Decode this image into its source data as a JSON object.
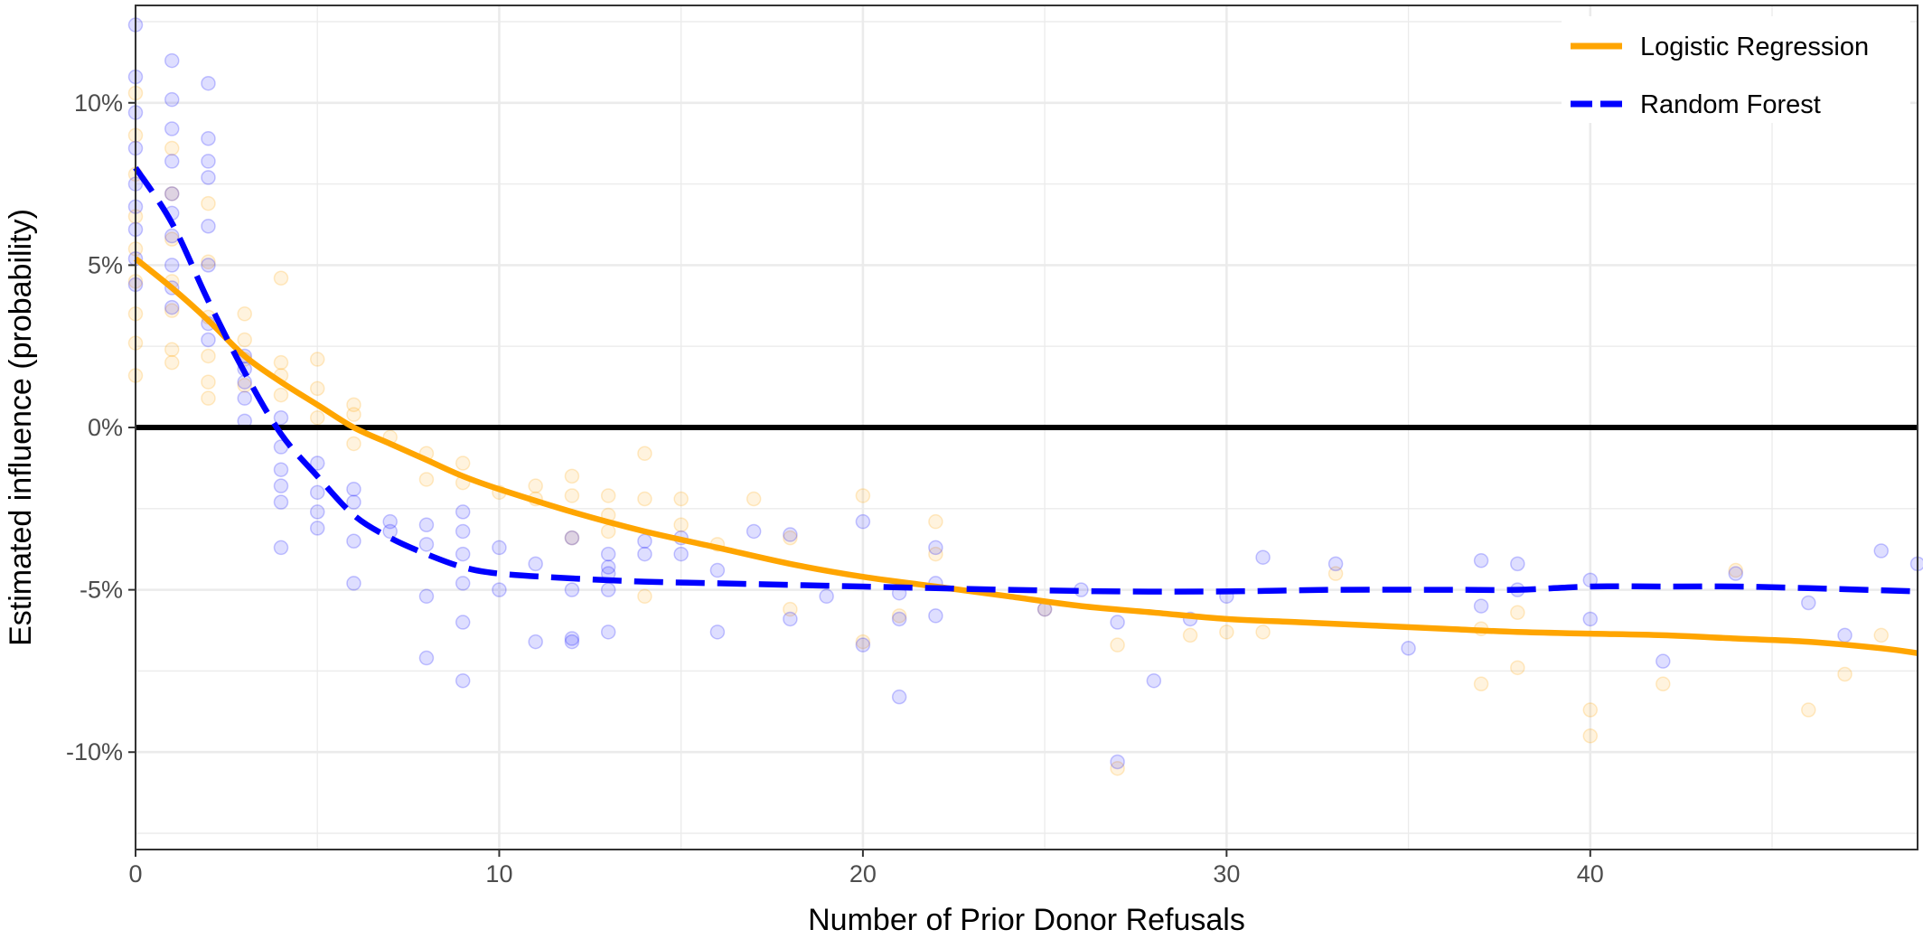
{
  "chart_data": {
    "type": "scatter",
    "title": "",
    "xlabel": "Number of Prior Donor Refusals",
    "ylabel": "Estimated influence (probability)",
    "xlim": [
      0,
      49
    ],
    "ylim": [
      -13,
      13
    ],
    "x_ticks": [
      0,
      10,
      20,
      30,
      40
    ],
    "x_tick_labels": [
      "0",
      "10",
      "20",
      "30",
      "40"
    ],
    "y_ticks": [
      10,
      5,
      0,
      -5,
      -10
    ],
    "y_tick_labels": [
      "10%",
      "5%",
      "0%",
      "-5%",
      "-10%"
    ],
    "grid": true,
    "reference_line_y": 0,
    "legend_position": "top-right",
    "colors": {
      "logistic": "#FFA500",
      "forest": "#0000FF",
      "grid": "#ebebeb",
      "reference": "#000000",
      "border": "#333333"
    },
    "series": [
      {
        "name": "Logistic Regression",
        "style": "solid",
        "color": "#FFA500",
        "line": [
          [
            0,
            5.2
          ],
          [
            1,
            4.3
          ],
          [
            2,
            3.3
          ],
          [
            3,
            2.2
          ],
          [
            4,
            1.4
          ],
          [
            5,
            0.7
          ],
          [
            6,
            0.0
          ],
          [
            7,
            -0.5
          ],
          [
            8,
            -1.0
          ],
          [
            9,
            -1.5
          ],
          [
            10,
            -1.9
          ],
          [
            12,
            -2.6
          ],
          [
            14,
            -3.2
          ],
          [
            16,
            -3.7
          ],
          [
            18,
            -4.2
          ],
          [
            20,
            -4.6
          ],
          [
            22,
            -4.9
          ],
          [
            24,
            -5.2
          ],
          [
            26,
            -5.5
          ],
          [
            28,
            -5.7
          ],
          [
            30,
            -5.9
          ],
          [
            32,
            -6.0
          ],
          [
            34,
            -6.1
          ],
          [
            36,
            -6.2
          ],
          [
            38,
            -6.3
          ],
          [
            40,
            -6.35
          ],
          [
            42,
            -6.4
          ],
          [
            44,
            -6.5
          ],
          [
            46,
            -6.6
          ],
          [
            48,
            -6.8
          ],
          [
            49,
            -6.95
          ]
        ],
        "points": [
          [
            0,
            10.3
          ],
          [
            0,
            9.0
          ],
          [
            0,
            7.8
          ],
          [
            0,
            6.5
          ],
          [
            0,
            5.5
          ],
          [
            0,
            4.5
          ],
          [
            0,
            3.5
          ],
          [
            0,
            2.6
          ],
          [
            0,
            1.6
          ],
          [
            1,
            8.6
          ],
          [
            1,
            7.2
          ],
          [
            1,
            5.8
          ],
          [
            1,
            4.5
          ],
          [
            1,
            3.6
          ],
          [
            1,
            2.4
          ],
          [
            1,
            2.0
          ],
          [
            2,
            6.9
          ],
          [
            2,
            5.1
          ],
          [
            2,
            3.4
          ],
          [
            2,
            2.2
          ],
          [
            2,
            1.4
          ],
          [
            2,
            0.9
          ],
          [
            3,
            3.5
          ],
          [
            3,
            2.7
          ],
          [
            3,
            2.1
          ],
          [
            3,
            1.3
          ],
          [
            4,
            4.6
          ],
          [
            4,
            2.0
          ],
          [
            4,
            1.6
          ],
          [
            4,
            1.0
          ],
          [
            5,
            2.1
          ],
          [
            5,
            1.2
          ],
          [
            5,
            0.3
          ],
          [
            6,
            0.7
          ],
          [
            6,
            0.4
          ],
          [
            6,
            -0.5
          ],
          [
            7,
            -0.3
          ],
          [
            8,
            -0.8
          ],
          [
            8,
            -1.6
          ],
          [
            9,
            -1.1
          ],
          [
            9,
            -1.7
          ],
          [
            10,
            -2.0
          ],
          [
            11,
            -1.8
          ],
          [
            11,
            -2.2
          ],
          [
            12,
            -1.5
          ],
          [
            12,
            -2.1
          ],
          [
            12,
            -3.4
          ],
          [
            13,
            -2.1
          ],
          [
            13,
            -2.7
          ],
          [
            13,
            -3.2
          ],
          [
            14,
            -0.8
          ],
          [
            14,
            -2.2
          ],
          [
            14,
            -5.2
          ],
          [
            15,
            -2.2
          ],
          [
            15,
            -3.0
          ],
          [
            16,
            -3.6
          ],
          [
            17,
            -2.2
          ],
          [
            18,
            -3.4
          ],
          [
            18,
            -5.6
          ],
          [
            20,
            -2.1
          ],
          [
            20,
            -6.6
          ],
          [
            21,
            -5.8
          ],
          [
            22,
            -2.9
          ],
          [
            22,
            -3.9
          ],
          [
            25,
            -5.6
          ],
          [
            27,
            -6.7
          ],
          [
            27,
            -10.5
          ],
          [
            29,
            -6.4
          ],
          [
            30,
            -6.3
          ],
          [
            31,
            -6.3
          ],
          [
            33,
            -4.5
          ],
          [
            37,
            -6.2
          ],
          [
            37,
            -7.9
          ],
          [
            38,
            -5.7
          ],
          [
            38,
            -7.4
          ],
          [
            40,
            -8.7
          ],
          [
            40,
            -9.5
          ],
          [
            42,
            -7.9
          ],
          [
            44,
            -4.4
          ],
          [
            46,
            -8.7
          ],
          [
            47,
            -7.6
          ],
          [
            48,
            -6.4
          ]
        ]
      },
      {
        "name": "Random Forest",
        "style": "dashed",
        "color": "#0000FF",
        "line": [
          [
            0,
            8.0
          ],
          [
            1,
            6.3
          ],
          [
            2,
            3.9
          ],
          [
            3,
            1.7
          ],
          [
            4,
            -0.2
          ],
          [
            5,
            -1.5
          ],
          [
            6,
            -2.7
          ],
          [
            7,
            -3.4
          ],
          [
            8,
            -3.9
          ],
          [
            9,
            -4.3
          ],
          [
            10,
            -4.5
          ],
          [
            12,
            -4.65
          ],
          [
            14,
            -4.75
          ],
          [
            16,
            -4.8
          ],
          [
            18,
            -4.85
          ],
          [
            20,
            -4.9
          ],
          [
            22,
            -4.95
          ],
          [
            24,
            -5.0
          ],
          [
            27,
            -5.05
          ],
          [
            30,
            -5.05
          ],
          [
            33,
            -5.0
          ],
          [
            36,
            -5.0
          ],
          [
            38,
            -5.0
          ],
          [
            40,
            -4.9
          ],
          [
            42,
            -4.9
          ],
          [
            44,
            -4.9
          ],
          [
            46,
            -4.95
          ],
          [
            49,
            -5.05
          ]
        ],
        "points": [
          [
            0,
            12.4
          ],
          [
            0,
            10.8
          ],
          [
            0,
            9.7
          ],
          [
            0,
            8.6
          ],
          [
            0,
            7.5
          ],
          [
            0,
            6.8
          ],
          [
            0,
            6.1
          ],
          [
            0,
            5.2
          ],
          [
            0,
            4.4
          ],
          [
            1,
            11.3
          ],
          [
            1,
            10.1
          ],
          [
            1,
            9.2
          ],
          [
            1,
            8.2
          ],
          [
            1,
            7.2
          ],
          [
            1,
            6.6
          ],
          [
            1,
            5.9
          ],
          [
            1,
            5.0
          ],
          [
            1,
            4.3
          ],
          [
            1,
            3.7
          ],
          [
            2,
            10.6
          ],
          [
            2,
            8.9
          ],
          [
            2,
            8.2
          ],
          [
            2,
            7.7
          ],
          [
            2,
            6.2
          ],
          [
            2,
            5.0
          ],
          [
            2,
            3.2
          ],
          [
            2,
            2.7
          ],
          [
            3,
            2.2
          ],
          [
            3,
            1.8
          ],
          [
            3,
            1.4
          ],
          [
            3,
            0.9
          ],
          [
            3,
            0.2
          ],
          [
            4,
            0.3
          ],
          [
            4,
            -0.6
          ],
          [
            4,
            -1.3
          ],
          [
            4,
            -1.8
          ],
          [
            4,
            -2.3
          ],
          [
            4,
            -3.7
          ],
          [
            5,
            -1.1
          ],
          [
            5,
            -2.0
          ],
          [
            5,
            -2.6
          ],
          [
            5,
            -3.1
          ],
          [
            6,
            -1.9
          ],
          [
            6,
            -2.3
          ],
          [
            6,
            -3.5
          ],
          [
            6,
            -4.8
          ],
          [
            7,
            -3.2
          ],
          [
            7,
            -2.9
          ],
          [
            8,
            -3.0
          ],
          [
            8,
            -3.6
          ],
          [
            8,
            -5.2
          ],
          [
            8,
            -7.1
          ],
          [
            9,
            -2.6
          ],
          [
            9,
            -3.2
          ],
          [
            9,
            -3.9
          ],
          [
            9,
            -4.8
          ],
          [
            9,
            -6.0
          ],
          [
            9,
            -7.8
          ],
          [
            10,
            -3.7
          ],
          [
            10,
            -5.0
          ],
          [
            11,
            -4.2
          ],
          [
            11,
            -6.6
          ],
          [
            12,
            -3.4
          ],
          [
            12,
            -5.0
          ],
          [
            12,
            -6.5
          ],
          [
            12,
            -6.6
          ],
          [
            13,
            -3.9
          ],
          [
            13,
            -4.3
          ],
          [
            13,
            -4.5
          ],
          [
            13,
            -5.0
          ],
          [
            13,
            -6.3
          ],
          [
            14,
            -3.5
          ],
          [
            14,
            -3.9
          ],
          [
            15,
            -3.4
          ],
          [
            15,
            -3.9
          ],
          [
            16,
            -4.4
          ],
          [
            16,
            -6.3
          ],
          [
            17,
            -3.2
          ],
          [
            18,
            -3.3
          ],
          [
            18,
            -5.9
          ],
          [
            19,
            -5.2
          ],
          [
            20,
            -2.9
          ],
          [
            20,
            -6.7
          ],
          [
            21,
            -5.1
          ],
          [
            21,
            -5.9
          ],
          [
            21,
            -8.3
          ],
          [
            22,
            -3.7
          ],
          [
            22,
            -4.8
          ],
          [
            22,
            -5.8
          ],
          [
            25,
            -5.6
          ],
          [
            26,
            -5.0
          ],
          [
            27,
            -6.0
          ],
          [
            27,
            -10.3
          ],
          [
            28,
            -7.8
          ],
          [
            29,
            -5.9
          ],
          [
            30,
            -5.2
          ],
          [
            31,
            -4.0
          ],
          [
            33,
            -4.2
          ],
          [
            35,
            -6.8
          ],
          [
            37,
            -4.1
          ],
          [
            37,
            -5.5
          ],
          [
            38,
            -4.2
          ],
          [
            38,
            -5.0
          ],
          [
            40,
            -4.7
          ],
          [
            40,
            -5.9
          ],
          [
            42,
            -7.2
          ],
          [
            44,
            -4.5
          ],
          [
            46,
            -5.4
          ],
          [
            47,
            -6.4
          ],
          [
            48,
            -3.8
          ],
          [
            49,
            -4.2
          ]
        ]
      }
    ]
  }
}
